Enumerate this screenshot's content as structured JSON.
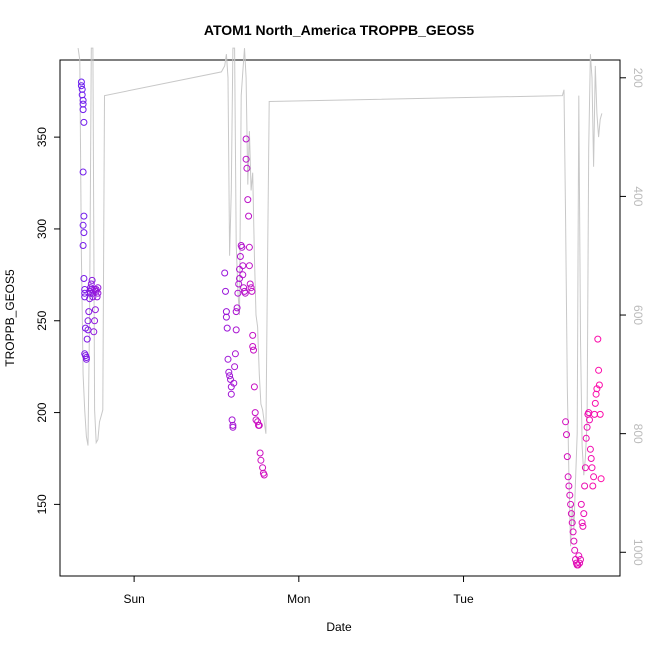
{
  "chart_data": {
    "type": "scatter",
    "title": "ATOM1 North_America TROPPB_GEOS5",
    "xlabel": "Date",
    "ylabel": "TROPPB_GEOS5",
    "x_ticks": [
      "Sun",
      "Mon",
      "Tue"
    ],
    "x_tick_days": [
      1,
      2,
      3
    ],
    "xlim_days": [
      0.55,
      3.95
    ],
    "ylim": [
      111,
      392
    ],
    "y_ticks": [
      150,
      200,
      250,
      300,
      350
    ],
    "y_right_ticks": [
      200,
      400,
      600,
      800,
      1000
    ],
    "y_right_lim": [
      1040,
      170
    ],
    "grid": false,
    "legend": "none",
    "colors": {
      "points_start": "#6a1cf0",
      "points_end": "#ff0aa8",
      "line": "#c8c8c8"
    },
    "series": [
      {
        "style": "points",
        "x_days": [
          0.68,
          0.68,
          0.685,
          0.685,
          0.69,
          0.69,
          0.69,
          0.695,
          0.69,
          0.695,
          0.69,
          0.695,
          0.69,
          0.695,
          0.7,
          0.7,
          0.7,
          0.705,
          0.7,
          0.705,
          0.71,
          0.71,
          0.715,
          0.72,
          0.72,
          0.725,
          0.73,
          0.735,
          0.73,
          0.74,
          0.735,
          0.745,
          0.74,
          0.75,
          0.75,
          0.755,
          0.76,
          0.765,
          0.76,
          0.77,
          0.77,
          0.775,
          0.78,
          0.78,
          1.55,
          1.555,
          1.56,
          1.56,
          1.565,
          1.57,
          1.575,
          1.58,
          1.585,
          1.59,
          1.59,
          1.595,
          1.6,
          1.6,
          1.605,
          1.61,
          1.615,
          1.62,
          1.62,
          1.625,
          1.63,
          1.635,
          1.64,
          1.64,
          1.645,
          1.65,
          1.655,
          1.66,
          1.66,
          1.665,
          1.67,
          1.675,
          1.68,
          1.68,
          1.685,
          1.69,
          1.695,
          1.7,
          1.7,
          1.705,
          1.71,
          1.715,
          1.72,
          1.72,
          1.725,
          1.73,
          1.735,
          1.74,
          1.75,
          1.755,
          1.76,
          1.765,
          1.77,
          1.78,
          1.785,
          1.79,
          3.62,
          3.625,
          3.63,
          3.635,
          3.64,
          3.645,
          3.65,
          3.655,
          3.66,
          3.665,
          3.67,
          3.675,
          3.68,
          3.685,
          3.69,
          3.695,
          3.7,
          3.705,
          3.71,
          3.715,
          3.72,
          3.725,
          3.73,
          3.735,
          3.74,
          3.745,
          3.75,
          3.755,
          3.76,
          3.765,
          3.77,
          3.775,
          3.78,
          3.785,
          3.79,
          3.795,
          3.8,
          3.805,
          3.81,
          3.815,
          3.82,
          3.825,
          3.83,
          3.835
        ],
        "y": [
          380,
          378,
          376,
          373,
          370,
          368,
          365,
          358,
          331,
          307,
          302,
          298,
          291,
          273,
          267,
          265,
          263,
          246,
          232,
          231,
          230,
          229,
          240,
          245,
          250,
          255,
          262,
          265,
          266,
          267,
          268,
          272,
          270,
          263,
          265,
          244,
          250,
          256,
          267,
          266,
          267,
          263,
          268,
          265,
          276,
          266,
          255,
          252,
          246,
          229,
          222,
          220,
          218,
          214,
          210,
          196,
          192,
          193,
          216,
          225,
          232,
          245,
          255,
          257,
          265,
          270,
          273,
          278,
          285,
          291,
          290,
          280,
          275,
          268,
          266,
          265,
          349,
          338,
          333,
          316,
          307,
          290,
          280,
          270,
          268,
          266,
          242,
          236,
          234,
          214,
          200,
          196,
          195,
          193,
          193,
          178,
          174,
          170,
          167,
          166,
          195,
          188,
          176,
          165,
          160,
          155,
          150,
          145,
          140,
          135,
          130,
          125,
          120,
          118,
          117,
          117,
          122,
          118,
          120,
          150,
          140,
          138,
          145,
          160,
          170,
          186,
          192,
          199,
          200,
          196,
          180,
          175,
          170,
          160,
          165,
          199,
          205,
          210,
          213,
          240,
          223,
          215,
          199,
          164
        ],
        "name": ""
      },
      {
        "style": "line",
        "right_axis": true,
        "x_days": [
          0.66,
          0.67,
          0.68,
          0.69,
          0.7,
          0.71,
          0.72,
          0.73,
          0.74,
          0.75,
          0.76,
          0.77,
          0.78,
          0.79,
          0.8,
          0.81,
          0.82,
          1.53,
          1.55,
          1.56,
          1.57,
          1.58,
          1.59,
          1.6,
          1.61,
          1.62,
          1.63,
          1.64,
          1.65,
          1.66,
          1.67,
          1.68,
          1.69,
          1.7,
          1.71,
          1.72,
          1.73,
          1.74,
          1.75,
          1.76,
          1.77,
          1.78,
          1.79,
          1.8,
          1.81,
          1.82,
          3.6,
          3.61,
          3.62,
          3.63,
          3.64,
          3.65,
          3.66,
          3.67,
          3.68,
          3.69,
          3.7,
          3.71,
          3.72,
          3.73,
          3.74,
          3.75,
          3.76,
          3.77,
          3.78,
          3.79,
          3.8,
          3.81,
          3.82,
          3.83,
          3.84
        ],
        "y_hpa": [
          150,
          170,
          500,
          700,
          760,
          805,
          820,
          600,
          150,
          150,
          760,
          815,
          810,
          780,
          770,
          760,
          230,
          190,
          180,
          160,
          200,
          500,
          390,
          150,
          150,
          480,
          560,
          600,
          230,
          190,
          150,
          200,
          380,
          290,
          390,
          360,
          500,
          600,
          620,
          700,
          750,
          760,
          780,
          800,
          520,
          240,
          230,
          220,
          440,
          720,
          870,
          990,
          920,
          960,
          880,
          800,
          230,
          640,
          820,
          870,
          840,
          780,
          320,
          160,
          200,
          350,
          180,
          260,
          300,
          270,
          260
        ],
        "name": ""
      }
    ]
  }
}
